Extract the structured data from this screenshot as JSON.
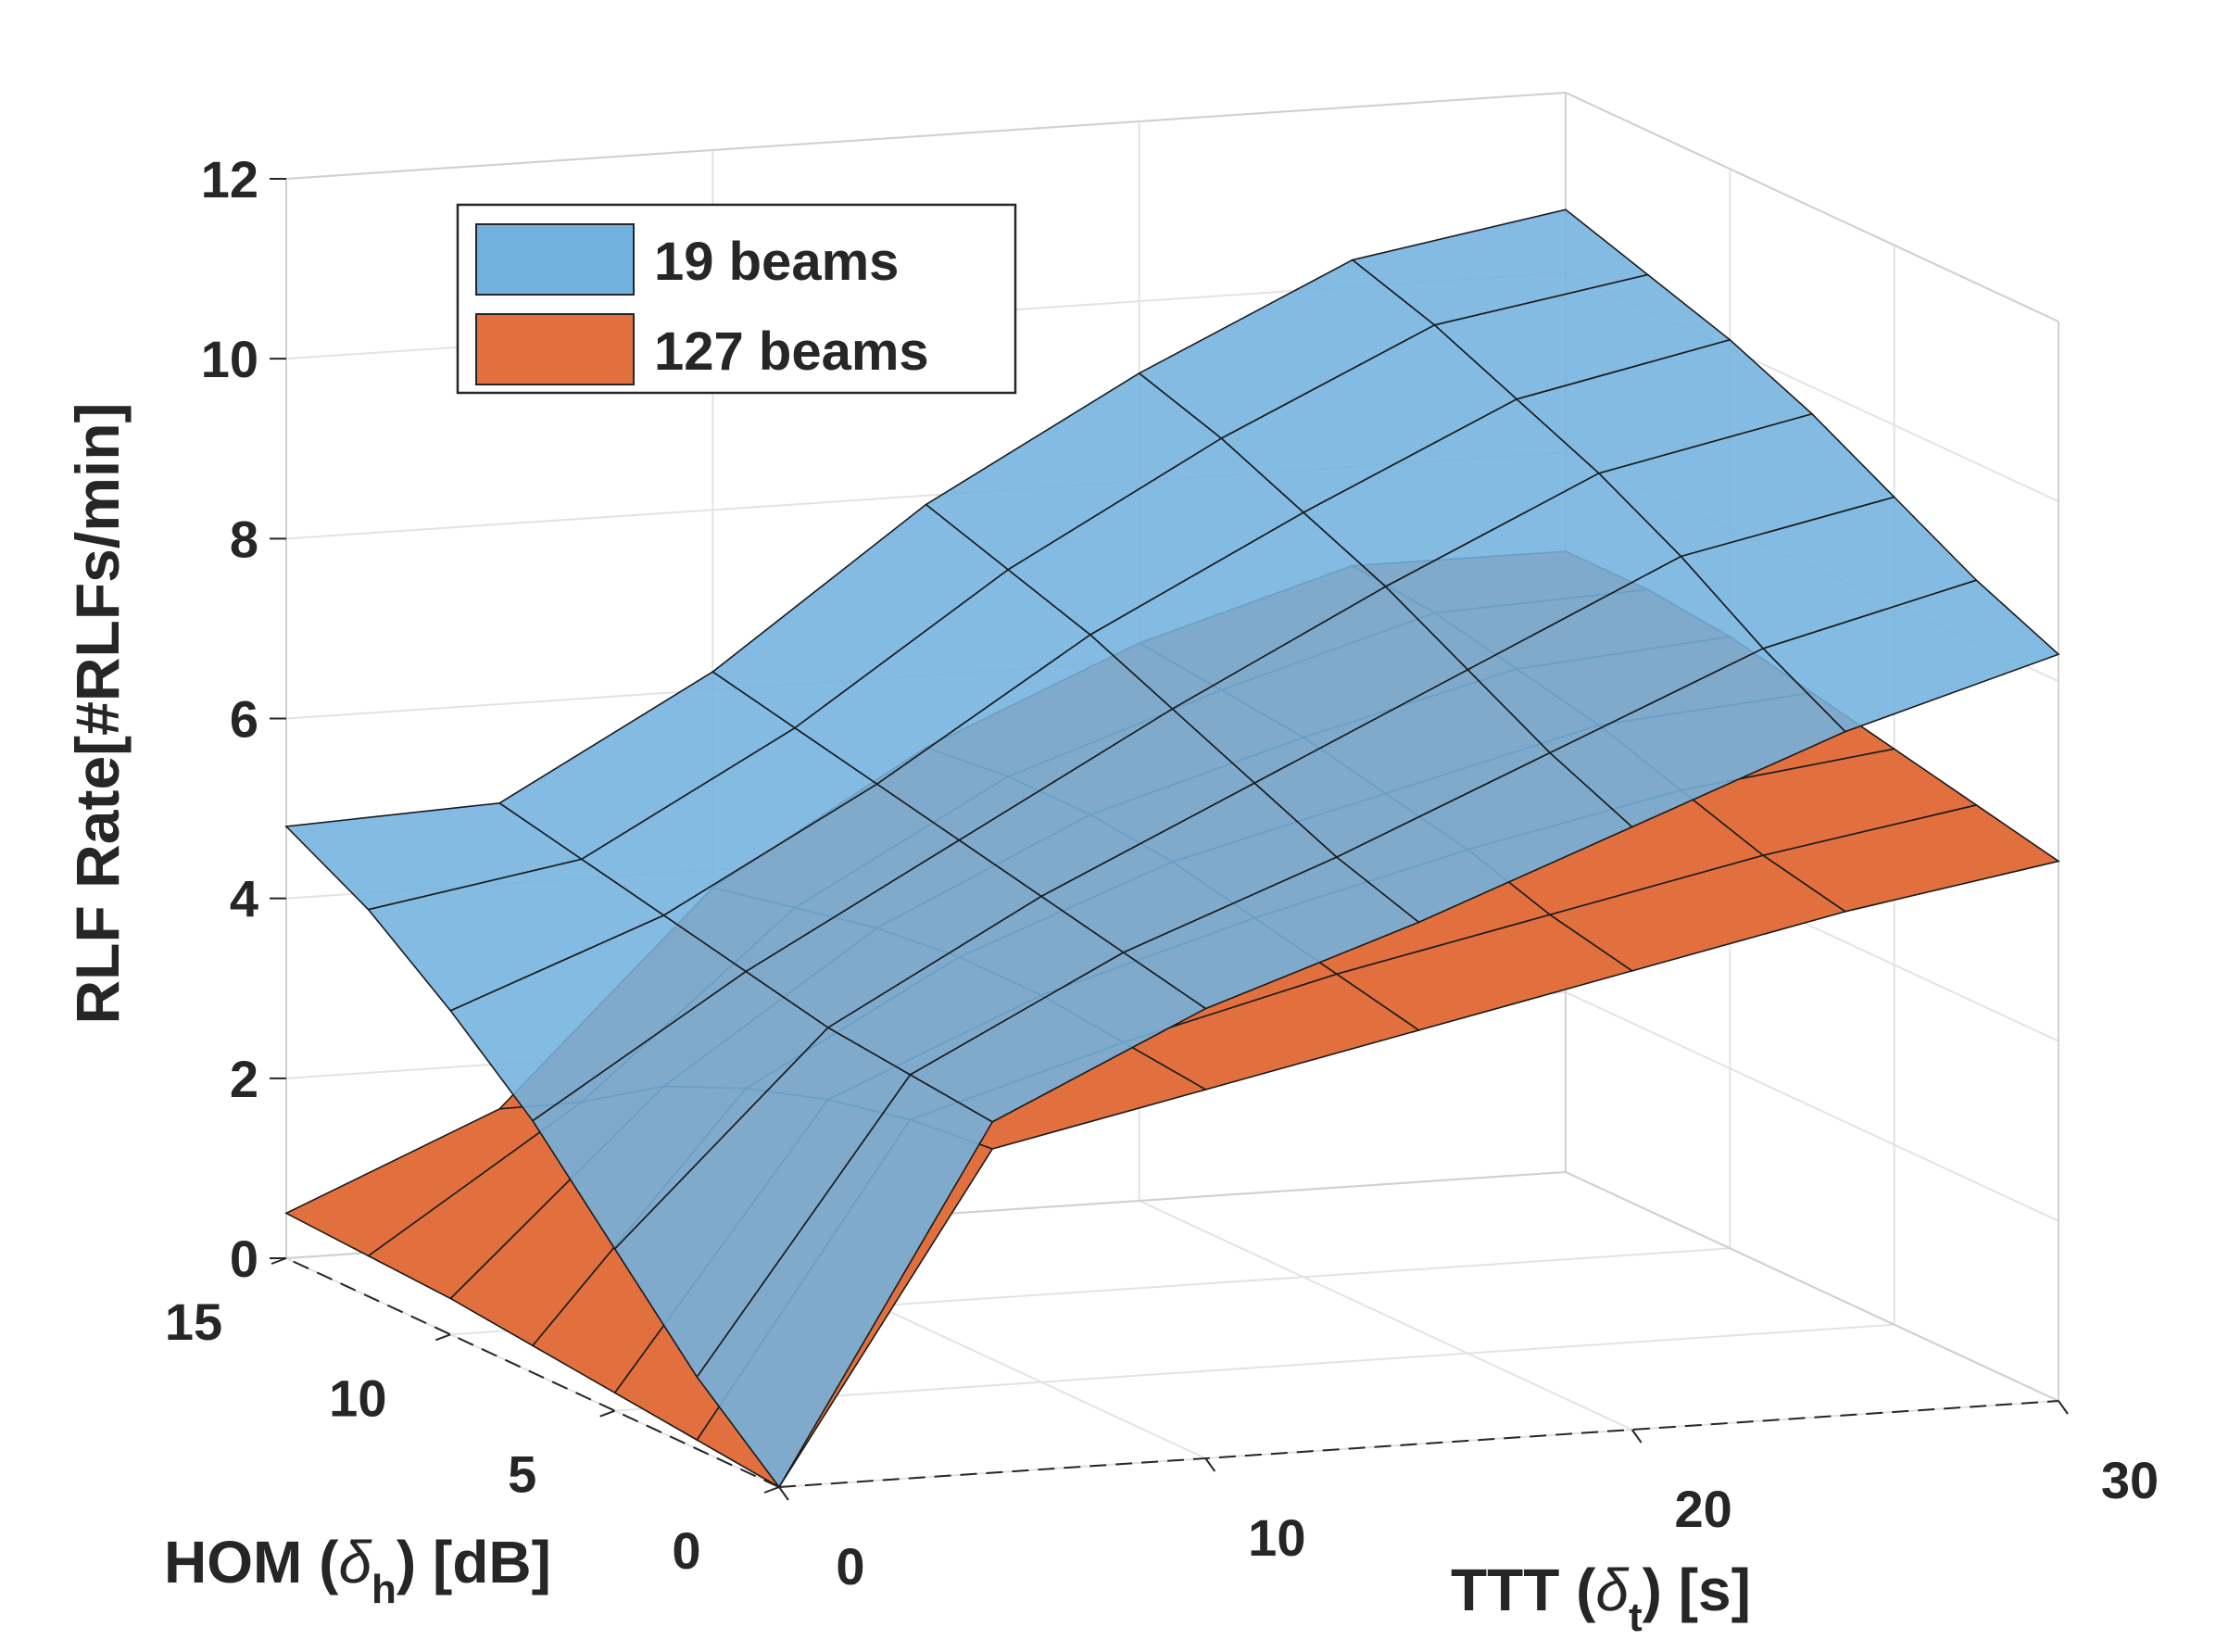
{
  "chart_data": {
    "type": "surface",
    "xlabel": [
      "TTT (",
      "δ",
      "t",
      ") [s]"
    ],
    "ylabel": [
      "HOM (",
      "δ",
      "h",
      ") [dB]"
    ],
    "zlabel": "RLF Rate[#RLFs/min]",
    "x": [
      0,
      5,
      10,
      15,
      20,
      25,
      30
    ],
    "y": [
      0,
      2.5,
      5,
      7.5,
      10,
      12.5,
      15
    ],
    "xlim": [
      0,
      30
    ],
    "ylim": [
      0,
      15
    ],
    "zlim": [
      0,
      12
    ],
    "xticks": [
      0,
      10,
      20,
      30
    ],
    "yticks": [
      0,
      5,
      10,
      15
    ],
    "zticks": [
      0,
      2,
      4,
      6,
      8,
      10,
      12
    ],
    "grid": true,
    "legend": "upper left",
    "series": [
      {
        "name": "19 beams",
        "color": "#72b2df",
        "z": [
          [
            0,
            3.9,
            5.0,
            5.8,
            6.7,
            7.6,
            8.3
          ],
          [
            0.8,
            4.0,
            5.2,
            6.1,
            7.1,
            8.1,
            8.7
          ],
          [
            1.8,
            4.1,
            5.4,
            6.5,
            7.6,
            8.7,
            9.2
          ],
          [
            2.8,
            4.3,
            5.6,
            6.9,
            8.1,
            9.2,
            9.7
          ],
          [
            3.6,
            4.5,
            5.8,
            7.3,
            8.5,
            9.6,
            10.1
          ],
          [
            4.3,
            4.7,
            6.0,
            7.6,
            8.9,
            10.0,
            10.4
          ],
          [
            4.8,
            4.9,
            6.2,
            7.9,
            9.2,
            10.3,
            10.7
          ]
        ]
      },
      {
        "name": "127 beams",
        "color": "#e2703e",
        "z": [
          [
            0,
            3.6,
            4.1,
            4.6,
            5.1,
            5.6,
            6.0
          ],
          [
            0.1,
            3.5,
            4.2,
            4.8,
            5.3,
            5.8,
            6.2
          ],
          [
            0.2,
            3.3,
            4.3,
            5.0,
            5.6,
            6.1,
            6.4
          ],
          [
            0.3,
            3.0,
            4.3,
            5.2,
            5.8,
            6.4,
            6.6
          ],
          [
            0.4,
            2.6,
            4.2,
            5.3,
            6.0,
            6.6,
            6.8
          ],
          [
            0.45,
            2.0,
            4.0,
            5.3,
            6.1,
            6.8,
            6.9
          ],
          [
            0.5,
            1.5,
            3.8,
            5.2,
            6.2,
            6.9,
            6.9
          ]
        ]
      }
    ]
  }
}
